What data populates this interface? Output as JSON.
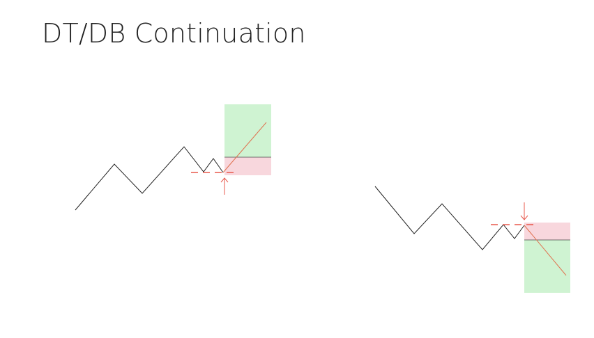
{
  "slide": {
    "title": "DT/DB Continuation"
  },
  "colors": {
    "price_line": "#222222",
    "entry_marker": "#e8584c",
    "trade_line": "#e0704e",
    "target_zone": "#cff3d2",
    "stop_zone": "#f8d7dd",
    "zone_divider": "#444444"
  },
  "diagrams": [
    {
      "name": "double-top-continuation",
      "direction": "long",
      "arrow": "up-arrow-icon"
    },
    {
      "name": "double-bottom-continuation",
      "direction": "short",
      "arrow": "down-arrow-icon"
    }
  ]
}
